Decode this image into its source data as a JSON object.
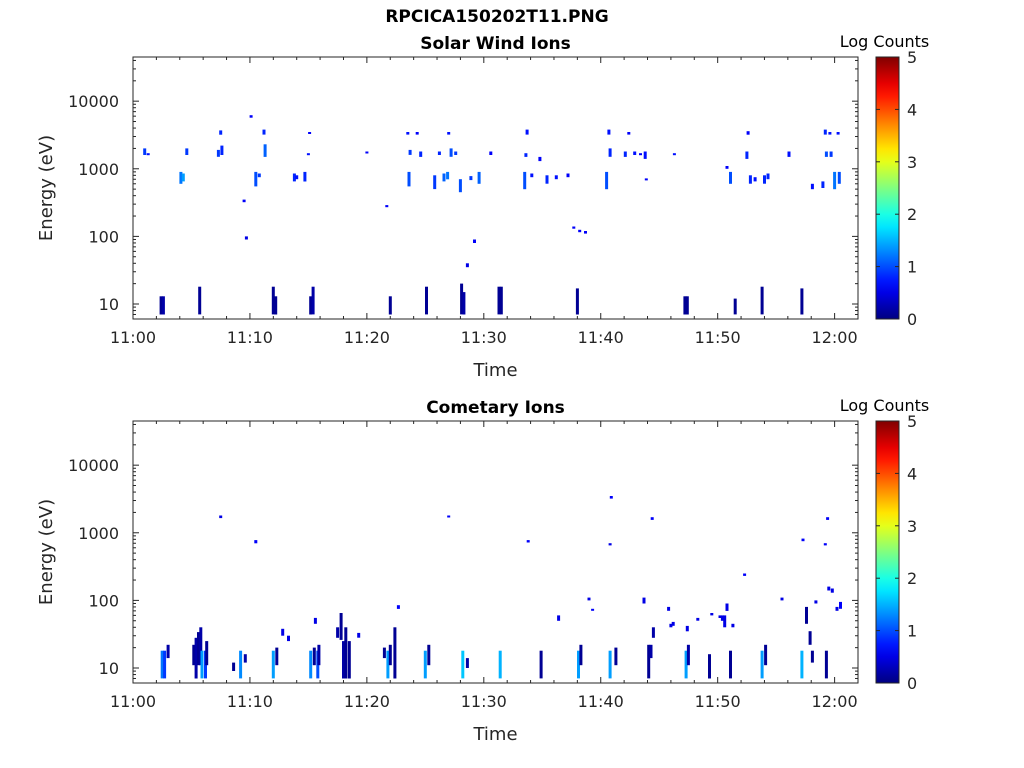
{
  "figure_title": "RPCICA150202T11.PNG",
  "chart_data": [
    {
      "type": "heatmap",
      "title": "Solar Wind Ions",
      "xlabel": "Time",
      "ylabel": "Energy (eV)",
      "colorbar_label": "Log Counts",
      "colorbar_ticks": [
        0,
        1,
        2,
        3,
        4,
        5
      ],
      "colorbar_range": [
        0,
        5
      ],
      "x_range_min": [
        0,
        62
      ],
      "y_scale": "log",
      "ylim": [
        6,
        45000
      ],
      "x_tick_labels": [
        "11:00",
        "11:10",
        "11:20",
        "11:30",
        "11:40",
        "11:50",
        "12:00"
      ],
      "x_tick_values_min": [
        0,
        10,
        20,
        30,
        40,
        50,
        60
      ],
      "y_tick_labels": [
        "10",
        "100",
        "1000",
        "10000"
      ],
      "y_tick_values": [
        10,
        100,
        1000,
        10000
      ],
      "events": [
        [
          1.0,
          1600,
          2000,
          0.9
        ],
        [
          1.3,
          1650,
          1700,
          0.7
        ],
        [
          2.4,
          7,
          13,
          0.1
        ],
        [
          2.6,
          7,
          13,
          0.2
        ],
        [
          4.1,
          600,
          900,
          1.2
        ],
        [
          4.3,
          650,
          850,
          1.4
        ],
        [
          4.6,
          1600,
          2000,
          0.9
        ],
        [
          5.7,
          7,
          18,
          0.1
        ],
        [
          7.3,
          1500,
          1900,
          0.9
        ],
        [
          7.5,
          3200,
          3700,
          0.8
        ],
        [
          7.6,
          1600,
          2200,
          0.8
        ],
        [
          9.5,
          320,
          350,
          0.6
        ],
        [
          9.7,
          90,
          100,
          0.5
        ],
        [
          10.1,
          5700,
          6200,
          0.6
        ],
        [
          10.5,
          550,
          900,
          1.0
        ],
        [
          10.8,
          750,
          850,
          0.9
        ],
        [
          11.2,
          3200,
          3800,
          0.8
        ],
        [
          11.3,
          1500,
          2300,
          1.1
        ],
        [
          12.0,
          7,
          18,
          0.1
        ],
        [
          12.2,
          7,
          13,
          0.1
        ],
        [
          13.8,
          650,
          850,
          0.8
        ],
        [
          14.0,
          700,
          800,
          0.7
        ],
        [
          14.7,
          650,
          900,
          0.8
        ],
        [
          15.0,
          1600,
          1700,
          0.7
        ],
        [
          15.1,
          3300,
          3500,
          0.6
        ],
        [
          15.2,
          7,
          13,
          0.1
        ],
        [
          15.4,
          7,
          18,
          0.2
        ],
        [
          20.0,
          1700,
          1800,
          0.6
        ],
        [
          21.7,
          270,
          290,
          0.6
        ],
        [
          22.0,
          7,
          13,
          0.1
        ],
        [
          23.5,
          3200,
          3500,
          0.7
        ],
        [
          23.6,
          550,
          900,
          1.0
        ],
        [
          23.7,
          1600,
          1900,
          0.9
        ],
        [
          24.3,
          3200,
          3500,
          0.6
        ],
        [
          24.6,
          1500,
          1800,
          0.8
        ],
        [
          25.1,
          7,
          18,
          0.1
        ],
        [
          25.8,
          500,
          800,
          0.9
        ],
        [
          26.2,
          1600,
          1800,
          0.8
        ],
        [
          26.6,
          650,
          850,
          1.1
        ],
        [
          26.9,
          700,
          900,
          1.2
        ],
        [
          27.0,
          3200,
          3500,
          0.7
        ],
        [
          27.2,
          1500,
          2000,
          1.0
        ],
        [
          27.6,
          1600,
          1800,
          0.9
        ],
        [
          28.0,
          450,
          700,
          1.0
        ],
        [
          28.1,
          7,
          20,
          0.1
        ],
        [
          28.3,
          7,
          15,
          0.2
        ],
        [
          28.6,
          35,
          40,
          0.5
        ],
        [
          28.9,
          680,
          780,
          0.9
        ],
        [
          29.2,
          80,
          90,
          0.6
        ],
        [
          29.6,
          600,
          900,
          1.1
        ],
        [
          30.6,
          1600,
          1800,
          0.6
        ],
        [
          31.3,
          7,
          18,
          0.1
        ],
        [
          31.5,
          7,
          18,
          0.1
        ],
        [
          33.5,
          500,
          900,
          1.0
        ],
        [
          33.6,
          1500,
          1700,
          0.8
        ],
        [
          33.7,
          3200,
          3800,
          0.7
        ],
        [
          34.1,
          750,
          850,
          0.7
        ],
        [
          34.8,
          1300,
          1500,
          0.6
        ],
        [
          35.4,
          600,
          800,
          0.8
        ],
        [
          36.2,
          700,
          800,
          0.7
        ],
        [
          37.2,
          750,
          850,
          0.6
        ],
        [
          38.0,
          7,
          17,
          0.1
        ],
        [
          37.7,
          130,
          140,
          0.6
        ],
        [
          38.2,
          115,
          125,
          0.6
        ],
        [
          38.7,
          110,
          120,
          0.6
        ],
        [
          40.5,
          500,
          900,
          1.0
        ],
        [
          40.8,
          1500,
          2000,
          0.8
        ],
        [
          40.7,
          3200,
          3800,
          0.7
        ],
        [
          42.1,
          1500,
          1800,
          0.8
        ],
        [
          42.4,
          3200,
          3500,
          0.6
        ],
        [
          42.9,
          1600,
          1800,
          0.7
        ],
        [
          43.4,
          1600,
          1700,
          0.6
        ],
        [
          43.8,
          1400,
          1800,
          0.7
        ],
        [
          43.9,
          680,
          720,
          0.6
        ],
        [
          46.3,
          1600,
          1700,
          0.7
        ],
        [
          47.2,
          7,
          13,
          0.1
        ],
        [
          47.4,
          7,
          13,
          0.1
        ],
        [
          50.8,
          1000,
          1100,
          0.6
        ],
        [
          51.1,
          600,
          900,
          1.0
        ],
        [
          51.5,
          7,
          12,
          0.1
        ],
        [
          52.5,
          1400,
          1800,
          0.8
        ],
        [
          52.6,
          3200,
          3600,
          0.6
        ],
        [
          52.8,
          600,
          800,
          0.8
        ],
        [
          53.2,
          650,
          750,
          0.7
        ],
        [
          53.8,
          7,
          18,
          0.1
        ],
        [
          54.0,
          600,
          800,
          0.8
        ],
        [
          54.3,
          700,
          850,
          0.8
        ],
        [
          56.1,
          1500,
          1800,
          0.7
        ],
        [
          57.2,
          7,
          17,
          0.1
        ],
        [
          58.1,
          500,
          600,
          0.7
        ],
        [
          59.0,
          520,
          650,
          0.8
        ],
        [
          59.2,
          3200,
          3800,
          0.8
        ],
        [
          59.3,
          1500,
          1800,
          1.0
        ],
        [
          59.6,
          3200,
          3500,
          0.7
        ],
        [
          59.7,
          1500,
          1800,
          0.9
        ],
        [
          60.0,
          500,
          900,
          1.2
        ],
        [
          60.3,
          3200,
          3500,
          0.7
        ],
        [
          60.4,
          600,
          900,
          1.0
        ]
      ]
    },
    {
      "type": "heatmap",
      "title": "Cometary Ions",
      "xlabel": "Time",
      "ylabel": "Energy (eV)",
      "colorbar_label": "Log Counts",
      "colorbar_ticks": [
        0,
        1,
        2,
        3,
        4,
        5
      ],
      "colorbar_range": [
        0,
        5
      ],
      "x_range_min": [
        0,
        62
      ],
      "y_scale": "log",
      "ylim": [
        6,
        45000
      ],
      "x_tick_labels": [
        "11:00",
        "11:10",
        "11:20",
        "11:30",
        "11:40",
        "11:50",
        "12:00"
      ],
      "x_tick_values_min": [
        0,
        10,
        20,
        30,
        40,
        50,
        60
      ],
      "y_tick_labels": [
        "10",
        "100",
        "1000",
        "10000"
      ],
      "y_tick_values": [
        10,
        100,
        1000,
        10000
      ],
      "events": [
        [
          2.5,
          7,
          18,
          1.2
        ],
        [
          2.7,
          7,
          18,
          0.9
        ],
        [
          3.0,
          14,
          22,
          0.2
        ],
        [
          5.2,
          11,
          22,
          0.1
        ],
        [
          5.4,
          7,
          28,
          0.2
        ],
        [
          5.6,
          11,
          34,
          0.1
        ],
        [
          5.8,
          11,
          40,
          0.2
        ],
        [
          5.9,
          7,
          18,
          1.4
        ],
        [
          6.2,
          7,
          18,
          0.9
        ],
        [
          6.3,
          11,
          25,
          0.1
        ],
        [
          7.5,
          1650,
          1800,
          0.5
        ],
        [
          8.6,
          9,
          12,
          0.1
        ],
        [
          9.2,
          7,
          18,
          1.3
        ],
        [
          9.6,
          12,
          16,
          0.2
        ],
        [
          10.5,
          700,
          780,
          0.6
        ],
        [
          12.0,
          7,
          18,
          1.4
        ],
        [
          12.3,
          11,
          20,
          0.1
        ],
        [
          12.8,
          30,
          38,
          0.5
        ],
        [
          13.3,
          25,
          30,
          0.5
        ],
        [
          15.2,
          7,
          18,
          1.3
        ],
        [
          15.5,
          11,
          20,
          0.1
        ],
        [
          15.6,
          45,
          55,
          0.5
        ],
        [
          15.8,
          7,
          18,
          1.0
        ],
        [
          15.9,
          11,
          22,
          0.2
        ],
        [
          17.5,
          28,
          40,
          0.2
        ],
        [
          17.8,
          26,
          65,
          0.1
        ],
        [
          18.0,
          7,
          25,
          0.2
        ],
        [
          18.2,
          7,
          40,
          0.1
        ],
        [
          18.5,
          7,
          25,
          0.1
        ],
        [
          19.3,
          28,
          33,
          0.5
        ],
        [
          21.5,
          14,
          20,
          0.1
        ],
        [
          21.8,
          7,
          18,
          1.4
        ],
        [
          22.0,
          11,
          22,
          0.1
        ],
        [
          22.4,
          7,
          40,
          0.1
        ],
        [
          22.7,
          75,
          85,
          0.6
        ],
        [
          25.0,
          7,
          18,
          1.4
        ],
        [
          25.3,
          11,
          22,
          0.1
        ],
        [
          27.0,
          1700,
          1800,
          0.6
        ],
        [
          28.2,
          7,
          18,
          1.6
        ],
        [
          28.6,
          10,
          14,
          0.2
        ],
        [
          31.4,
          7,
          18,
          1.5
        ],
        [
          33.8,
          720,
          780,
          0.6
        ],
        [
          34.9,
          7,
          18,
          0.1
        ],
        [
          36.4,
          50,
          60,
          0.5
        ],
        [
          38.1,
          7,
          18,
          1.4
        ],
        [
          38.3,
          11,
          22,
          0.1
        ],
        [
          39.0,
          100,
          110,
          0.5
        ],
        [
          39.3,
          70,
          75,
          0.6
        ],
        [
          40.8,
          7,
          18,
          1.4
        ],
        [
          40.9,
          3200,
          3500,
          0.6
        ],
        [
          40.8,
          650,
          700,
          0.5
        ],
        [
          41.3,
          11,
          20,
          0.1
        ],
        [
          43.7,
          90,
          110,
          0.5
        ],
        [
          44.1,
          7,
          22,
          0.1
        ],
        [
          44.3,
          14,
          22,
          0.2
        ],
        [
          44.4,
          1550,
          1700,
          0.6
        ],
        [
          44.5,
          28,
          40,
          0.2
        ],
        [
          45.8,
          70,
          80,
          0.5
        ],
        [
          46.0,
          40,
          45,
          0.5
        ],
        [
          46.2,
          42,
          48,
          0.5
        ],
        [
          47.3,
          7,
          18,
          1.4
        ],
        [
          47.5,
          11,
          22,
          0.2
        ],
        [
          47.4,
          35,
          42,
          0.5
        ],
        [
          48.3,
          50,
          55,
          0.5
        ],
        [
          49.3,
          7,
          16,
          0.1
        ],
        [
          49.5,
          60,
          65,
          0.5
        ],
        [
          50.2,
          55,
          60,
          0.5
        ],
        [
          50.4,
          50,
          60,
          0.5
        ],
        [
          50.6,
          40,
          60,
          0.5
        ],
        [
          50.8,
          70,
          90,
          0.5
        ],
        [
          51.1,
          7,
          18,
          0.1
        ],
        [
          51.3,
          40,
          45,
          0.5
        ],
        [
          52.3,
          230,
          250,
          0.6
        ],
        [
          53.8,
          7,
          18,
          1.4
        ],
        [
          54.1,
          11,
          22,
          0.1
        ],
        [
          55.5,
          100,
          110,
          0.5
        ],
        [
          57.2,
          7,
          18,
          1.5
        ],
        [
          57.3,
          750,
          820,
          0.6
        ],
        [
          57.6,
          45,
          80,
          0.1
        ],
        [
          57.9,
          22,
          35,
          0.1
        ],
        [
          58.1,
          12,
          18,
          0.1
        ],
        [
          58.4,
          90,
          100,
          0.5
        ],
        [
          59.2,
          650,
          700,
          0.6
        ],
        [
          59.3,
          7,
          18,
          0.1
        ],
        [
          59.4,
          1550,
          1700,
          0.6
        ],
        [
          59.5,
          140,
          160,
          0.5
        ],
        [
          59.8,
          130,
          150,
          0.5
        ],
        [
          60.2,
          70,
          80,
          0.5
        ],
        [
          60.5,
          75,
          95,
          0.6
        ]
      ]
    }
  ]
}
